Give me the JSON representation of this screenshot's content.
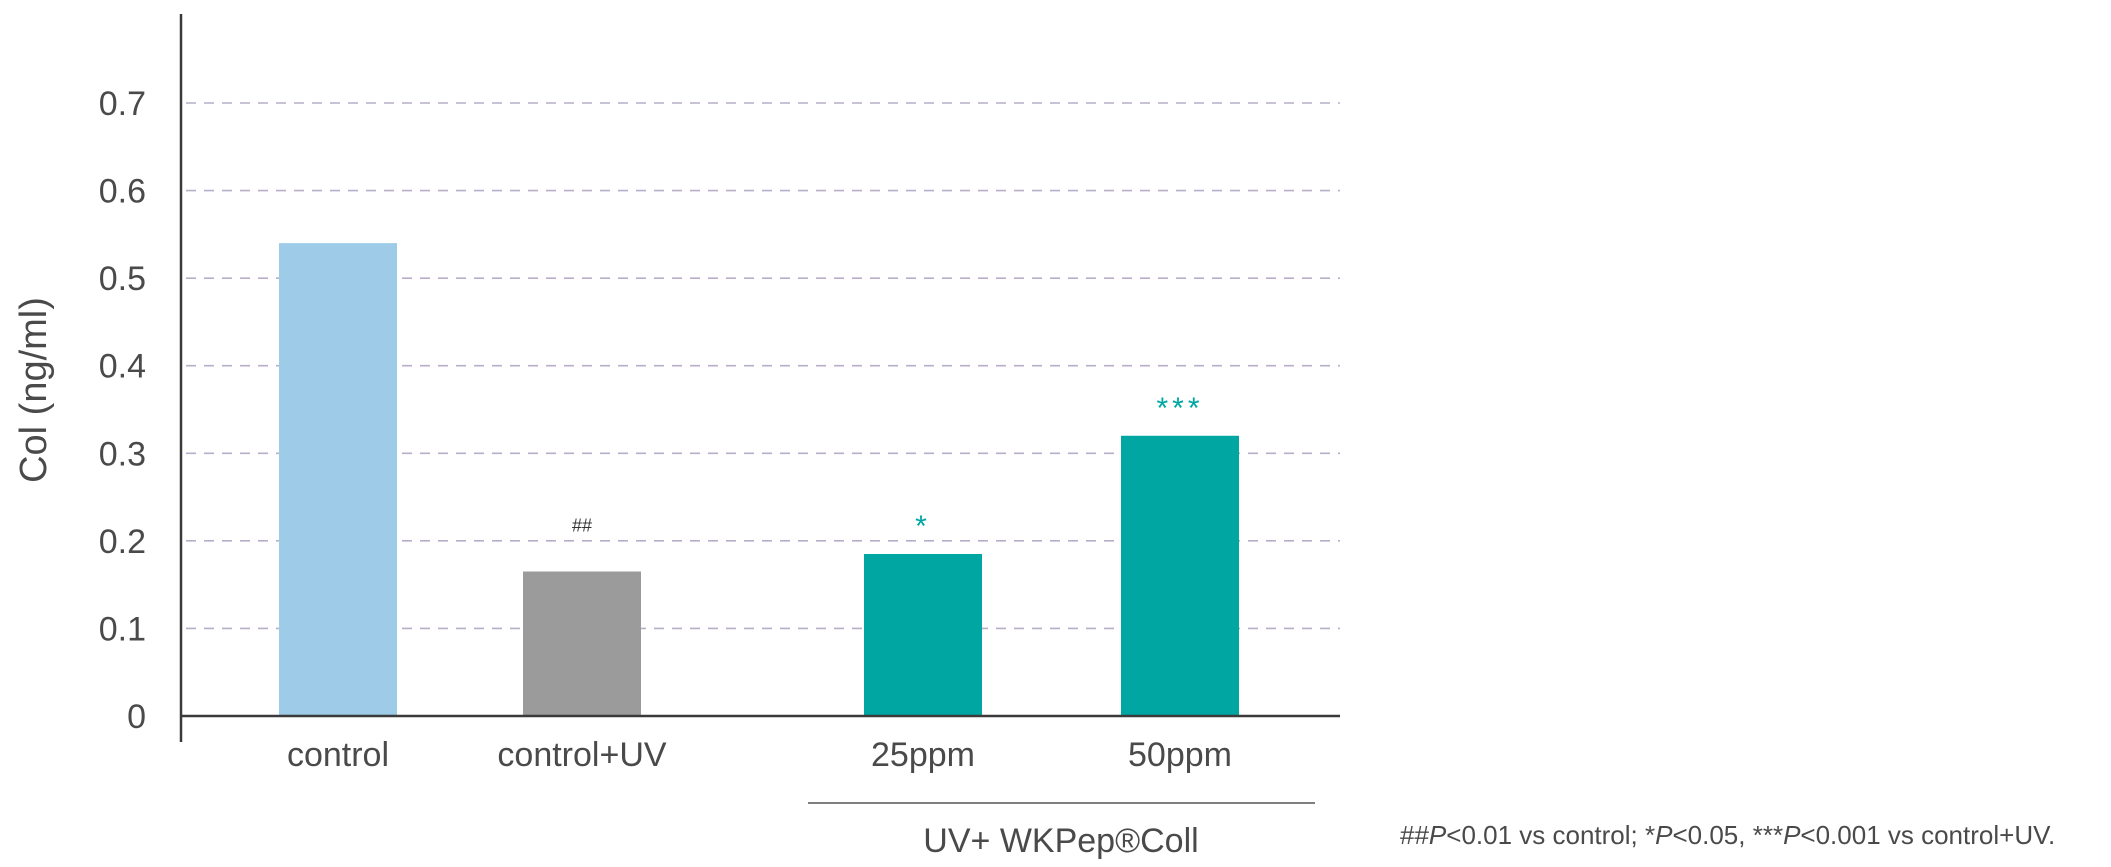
{
  "chart_data": {
    "type": "bar",
    "ylabel": "Col (ng/ml)",
    "ylim": [
      0,
      0.7
    ],
    "yticks": [
      "0",
      "0.1",
      "0.2",
      "0.3",
      "0.4",
      "0.5",
      "0.6",
      "0.7"
    ],
    "grid": "horizontal dashed",
    "categories": [
      "control",
      "control+UV",
      "25ppm",
      "50ppm"
    ],
    "values": [
      0.54,
      0.165,
      0.185,
      0.32
    ],
    "bar_colors": [
      "#9dcbe8",
      "#9b9b9b",
      "#00a7a2",
      "#00a7a2"
    ],
    "significance": [
      "",
      "##",
      "*",
      "***"
    ],
    "significance_colors": [
      "#333333",
      "#333333",
      "#00a7a2",
      "#00a7a2"
    ],
    "group_label": "UV+ WKPep®Coll"
  },
  "footnote": {
    "p1_marks": "##",
    "p1_sym": "P",
    "p1_rest": "<0.01 vs control; ",
    "p2_marks": "*",
    "p2_sym": "P",
    "p2_rest": "<0.05, ",
    "p3_marks": "***",
    "p3_sym": "P",
    "p3_rest": "<0.001 vs control+UV."
  }
}
